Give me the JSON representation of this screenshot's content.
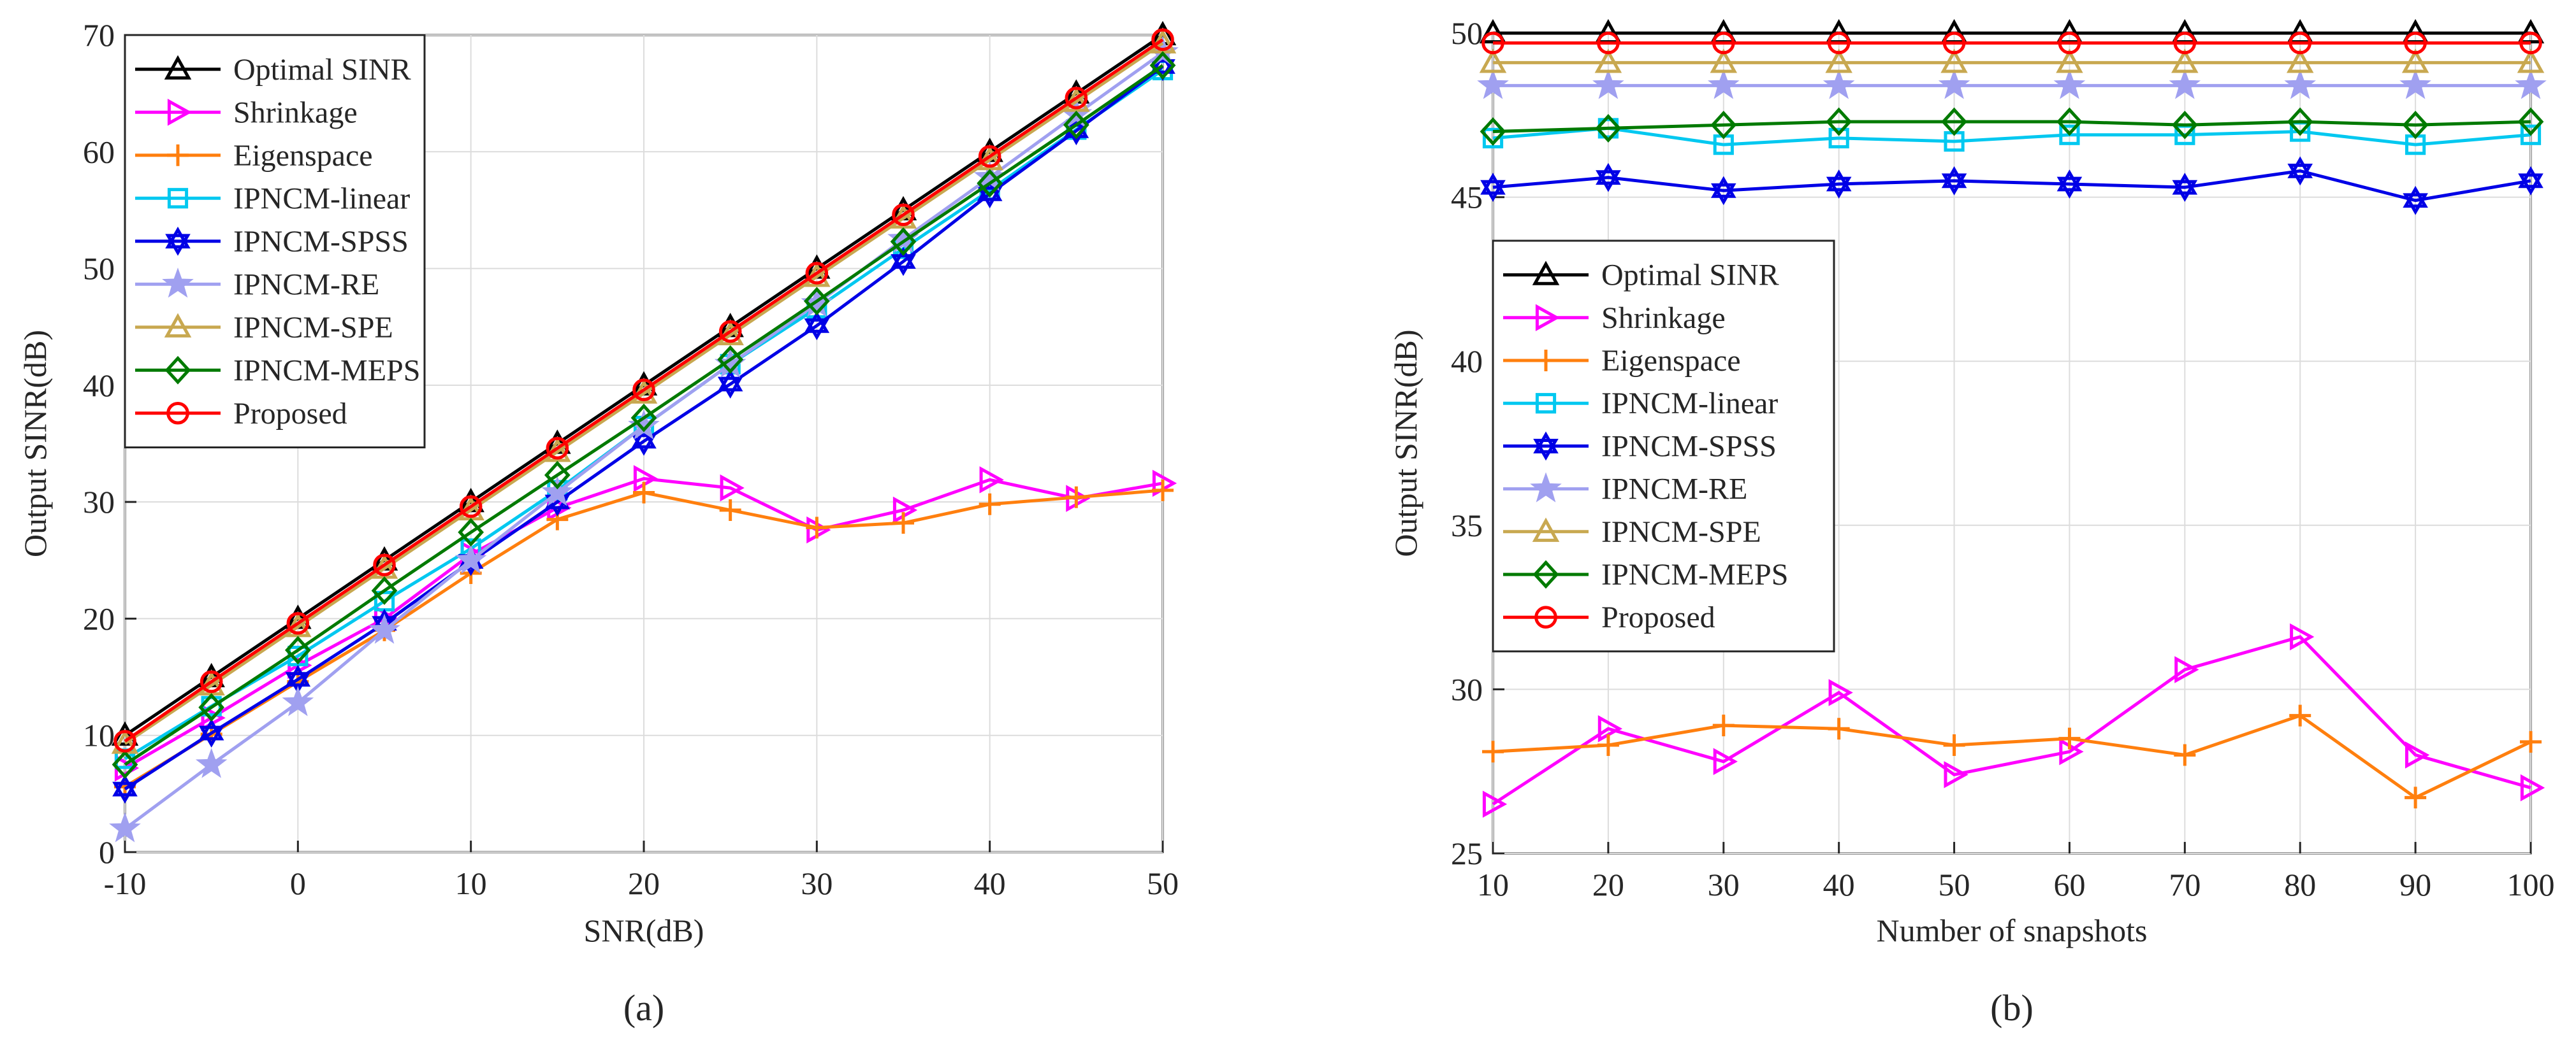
{
  "chart_data": [
    {
      "id": "a",
      "type": "line",
      "panel_label": "(a)",
      "xlabel": "SNR(dB)",
      "ylabel": "Output SINR(dB)",
      "xlim": [
        -10,
        50
      ],
      "ylim": [
        0,
        70
      ],
      "xticks": [
        -10,
        0,
        10,
        20,
        30,
        40,
        50
      ],
      "yticks": [
        0,
        10,
        20,
        30,
        40,
        50,
        60,
        70
      ],
      "legend_position": "top-left",
      "x": [
        -10,
        -5,
        0,
        5,
        10,
        15,
        20,
        25,
        30,
        35,
        40,
        45,
        50
      ],
      "series": [
        {
          "name": "Optimal SINR",
          "color": "#000000",
          "marker": "triangle-up",
          "values": [
            10,
            15,
            20,
            25,
            30,
            35,
            40,
            45,
            50,
            55,
            60,
            65,
            70
          ]
        },
        {
          "name": "Shrinkage",
          "color": "#ff00ff",
          "marker": "triangle-right",
          "values": [
            7.2,
            11.5,
            16.0,
            20.0,
            25.5,
            29.5,
            32.0,
            31.2,
            27.6,
            29.3,
            31.9,
            30.3,
            31.6
          ]
        },
        {
          "name": "Eigenspace",
          "color": "#ff7f0e",
          "marker": "plus",
          "values": [
            5.6,
            10.1,
            14.6,
            19.0,
            23.9,
            28.5,
            30.8,
            29.3,
            27.8,
            28.2,
            29.8,
            30.4,
            31.0
          ]
        },
        {
          "name": "IPNCM-linear",
          "color": "#00c8f0",
          "marker": "square",
          "values": [
            8.0,
            12.5,
            16.8,
            21.5,
            26.0,
            31.0,
            36.5,
            41.8,
            46.6,
            51.7,
            56.7,
            61.9,
            67.0
          ]
        },
        {
          "name": "IPNCM-SPSS",
          "color": "#0000e6",
          "marker": "hexagram",
          "values": [
            5.4,
            10.2,
            14.8,
            19.6,
            24.9,
            30.0,
            35.2,
            40.1,
            45.1,
            50.6,
            56.4,
            61.8,
            67.3
          ]
        },
        {
          "name": "IPNCM-RE",
          "color": "#a0a0f0",
          "marker": "star",
          "values": [
            2.0,
            7.5,
            12.8,
            19.0,
            25.0,
            30.8,
            36.5,
            41.8,
            47.0,
            52.5,
            57.8,
            63.2,
            68.5
          ]
        },
        {
          "name": "IPNCM-SPE",
          "color": "#c8a850",
          "marker": "triangle-up",
          "values": [
            9.3,
            14.3,
            19.3,
            24.3,
            29.3,
            34.3,
            39.3,
            44.3,
            49.3,
            54.3,
            59.3,
            64.3,
            69.3
          ]
        },
        {
          "name": "IPNCM-MEPS",
          "color": "#007a00",
          "marker": "diamond",
          "values": [
            7.5,
            12.4,
            17.3,
            22.4,
            27.4,
            32.3,
            37.2,
            42.2,
            47.2,
            52.3,
            57.3,
            62.3,
            67.4
          ]
        },
        {
          "name": "Proposed",
          "color": "#ff0000",
          "marker": "circle",
          "values": [
            9.5,
            14.6,
            19.6,
            24.6,
            29.6,
            34.6,
            39.6,
            44.6,
            49.6,
            54.6,
            59.6,
            64.6,
            69.6
          ]
        }
      ]
    },
    {
      "id": "b",
      "type": "line",
      "panel_label": "(b)",
      "xlabel": "Number of snapshots",
      "ylabel": "Output SINR(dB)",
      "xlim": [
        10,
        100
      ],
      "ylim": [
        25,
        50
      ],
      "xticks": [
        10,
        20,
        30,
        40,
        50,
        60,
        70,
        80,
        90,
        100
      ],
      "yticks": [
        25,
        30,
        35,
        40,
        45,
        50
      ],
      "legend_position": "center-left",
      "x": [
        10,
        20,
        30,
        40,
        50,
        60,
        70,
        80,
        90,
        100
      ],
      "series": [
        {
          "name": "Optimal SINR",
          "color": "#000000",
          "marker": "triangle-up",
          "values": [
            50,
            50,
            50,
            50,
            50,
            50,
            50,
            50,
            50,
            50
          ]
        },
        {
          "name": "Shrinkage",
          "color": "#ff00ff",
          "marker": "triangle-right",
          "values": [
            26.5,
            28.8,
            27.8,
            29.9,
            27.4,
            28.1,
            30.6,
            31.6,
            28.0,
            27.0
          ]
        },
        {
          "name": "Eigenspace",
          "color": "#ff7f0e",
          "marker": "plus",
          "values": [
            28.1,
            28.3,
            28.9,
            28.8,
            28.3,
            28.5,
            28.0,
            29.2,
            26.7,
            28.4
          ]
        },
        {
          "name": "IPNCM-linear",
          "color": "#00c8f0",
          "marker": "square",
          "values": [
            46.8,
            47.1,
            46.6,
            46.8,
            46.7,
            46.9,
            46.9,
            47.0,
            46.6,
            46.9
          ]
        },
        {
          "name": "IPNCM-SPSS",
          "color": "#0000e6",
          "marker": "hexagram",
          "values": [
            45.3,
            45.6,
            45.2,
            45.4,
            45.5,
            45.4,
            45.3,
            45.8,
            44.9,
            45.5
          ]
        },
        {
          "name": "IPNCM-RE",
          "color": "#a0a0f0",
          "marker": "star",
          "values": [
            48.4,
            48.4,
            48.4,
            48.4,
            48.4,
            48.4,
            48.4,
            48.4,
            48.4,
            48.4
          ]
        },
        {
          "name": "IPNCM-SPE",
          "color": "#c8a850",
          "marker": "triangle-up",
          "values": [
            49.1,
            49.1,
            49.1,
            49.1,
            49.1,
            49.1,
            49.1,
            49.1,
            49.1,
            49.1
          ]
        },
        {
          "name": "IPNCM-MEPS",
          "color": "#007a00",
          "marker": "diamond",
          "values": [
            47.0,
            47.1,
            47.2,
            47.3,
            47.3,
            47.3,
            47.2,
            47.3,
            47.2,
            47.3
          ]
        },
        {
          "name": "Proposed",
          "color": "#ff0000",
          "marker": "circle",
          "values": [
            49.7,
            49.7,
            49.7,
            49.7,
            49.7,
            49.7,
            49.7,
            49.7,
            49.7,
            49.7
          ]
        }
      ]
    }
  ]
}
